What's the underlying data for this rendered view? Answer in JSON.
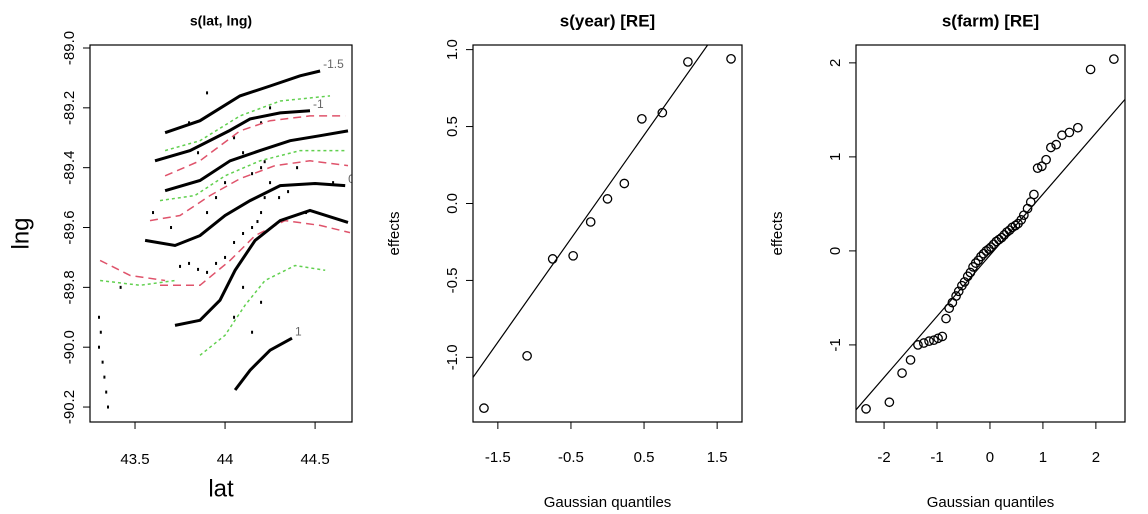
{
  "chart_data": [
    {
      "type": "contour",
      "title": "s(lat, lng)",
      "xlabel": "lat",
      "ylabel": "lng",
      "xlim": [
        43.25,
        44.705
      ],
      "ylim": [
        -90.25,
        -88.99
      ],
      "xticks": [
        43.5,
        44.0,
        44.5
      ],
      "yticks": [
        {
          "value": -89.0,
          "label": "-89.0"
        },
        -89.2,
        -89.4,
        -89.6,
        -89.8,
        {
          "value": -90.0,
          "label": "-90.0"
        },
        -90.2
      ],
      "points": {
        "x": [
          44.2,
          44.18,
          44.15,
          44.22,
          44.25,
          44.1,
          44.05,
          44.0,
          43.95,
          43.9,
          43.85,
          43.8,
          43.75,
          44.2,
          44.22,
          44.15,
          44.3,
          44.35,
          44.1,
          44.05,
          44.0,
          43.95,
          43.9,
          43.85,
          43.8,
          43.9,
          44.2,
          44.25,
          44.1,
          44.05,
          44.15,
          44.2,
          43.3,
          43.31,
          43.3,
          43.32,
          43.33,
          43.34,
          43.35,
          43.42,
          43.6,
          43.7,
          44.4,
          44.45,
          44.6
        ],
        "y": [
          -89.55,
          -89.58,
          -89.6,
          -89.5,
          -89.45,
          -89.62,
          -89.65,
          -89.7,
          -89.72,
          -89.75,
          -89.74,
          -89.72,
          -89.73,
          -89.4,
          -89.38,
          -89.42,
          -89.5,
          -89.48,
          -89.35,
          -89.3,
          -89.45,
          -89.5,
          -89.55,
          -89.35,
          -89.25,
          -89.15,
          -89.25,
          -89.2,
          -89.8,
          -89.9,
          -89.95,
          -89.85,
          -89.9,
          -89.95,
          -90.0,
          -90.05,
          -90.1,
          -90.15,
          -90.2,
          -89.8,
          -89.55,
          -89.6,
          -89.4,
          -89.55,
          -89.45
        ]
      },
      "contours": [
        {
          "level": -1.5,
          "color": "#000000",
          "x": [
            43.667,
            43.861,
            44.083,
            44.25,
            44.417,
            44.528
          ],
          "y": [
            -89.283,
            -89.243,
            -89.16,
            -89.127,
            -89.093,
            -89.077
          ]
        },
        {
          "level": -1,
          "color": "#000000",
          "x": [
            43.611,
            43.806,
            44.022,
            44.139,
            44.306,
            44.472
          ],
          "y": [
            -89.377,
            -89.343,
            -89.277,
            -89.237,
            -89.217,
            -89.21
          ]
        },
        {
          "level": -0.5,
          "color": "#000000",
          "x": [
            43.667,
            43.861,
            44.028,
            44.194,
            44.361,
            44.528,
            44.683
          ],
          "y": [
            -89.477,
            -89.443,
            -89.377,
            -89.343,
            -89.31,
            -89.293,
            -89.277
          ]
        },
        {
          "level": 0,
          "color": "#000000",
          "x": [
            43.556,
            43.722,
            43.861,
            44.0,
            44.139,
            44.306,
            44.5,
            44.667
          ],
          "y": [
            -89.643,
            -89.66,
            -89.627,
            -89.56,
            -89.51,
            -89.46,
            -89.453,
            -89.46
          ]
        },
        {
          "level": 0.5,
          "color": "#000000",
          "x": [
            43.722,
            43.861,
            43.972,
            44.056,
            44.167,
            44.306,
            44.472,
            44.683
          ],
          "y": [
            -89.927,
            -89.91,
            -89.843,
            -89.743,
            -89.643,
            -89.577,
            -89.543,
            -89.583
          ]
        },
        {
          "level": 1,
          "color": "#000000",
          "x": [
            44.056,
            44.139,
            44.25,
            44.372
          ],
          "y": [
            -90.143,
            -90.077,
            -90.01,
            -89.97
          ]
        }
      ],
      "se_contours": [
        {
          "color": "#df536b",
          "x": [
            43.667,
            43.861,
            44.083,
            44.25,
            44.472,
            44.667
          ],
          "y": [
            -89.427,
            -89.377,
            -89.277,
            -89.243,
            -89.227,
            -89.227
          ]
        },
        {
          "color": "#df536b",
          "x": [
            43.583,
            43.75,
            43.917,
            44.083,
            44.278,
            44.472,
            44.683
          ],
          "y": [
            -89.577,
            -89.56,
            -89.493,
            -89.437,
            -89.393,
            -89.377,
            -89.393
          ]
        },
        {
          "color": "#df536b",
          "x": [
            43.639,
            43.861,
            44.028,
            44.167,
            44.333,
            44.528,
            44.694
          ],
          "y": [
            -89.793,
            -89.793,
            -89.71,
            -89.627,
            -89.577,
            -89.593,
            -89.617
          ]
        },
        {
          "color": "#df536b",
          "x": [
            43.306,
            43.472,
            43.667
          ],
          "y": [
            -89.71,
            -89.76,
            -89.777
          ]
        },
        {
          "color": "#61d04f",
          "x": [
            43.667,
            43.861,
            44.083,
            44.306,
            44.583
          ],
          "y": [
            -89.343,
            -89.31,
            -89.227,
            -89.177,
            -89.16
          ]
        },
        {
          "color": "#61d04f",
          "x": [
            43.639,
            43.833,
            44.0,
            44.194,
            44.417,
            44.667
          ],
          "y": [
            -89.51,
            -89.493,
            -89.427,
            -89.377,
            -89.343,
            -89.343
          ]
        },
        {
          "color": "#61d04f",
          "x": [
            43.861,
            44.0,
            44.111,
            44.222,
            44.389,
            44.556
          ],
          "y": [
            -90.027,
            -89.96,
            -89.86,
            -89.777,
            -89.727,
            -89.743
          ]
        },
        {
          "color": "#61d04f",
          "x": [
            43.306,
            43.528,
            43.722
          ],
          "y": [
            -89.777,
            -89.793,
            -89.777
          ]
        }
      ]
    },
    {
      "type": "qq",
      "title": "s(year) [RE]",
      "xlabel": "Gaussian quantiles",
      "ylabel": "effects",
      "xlim": [
        -1.84,
        1.84
      ],
      "ylim": [
        -1.42,
        1.03
      ],
      "xticks": [
        -1.5,
        -0.5,
        0.5,
        1.5
      ],
      "yticks": [
        {
          "value": -1.0,
          "label": "-1.0"
        },
        -0.5,
        {
          "value": 0.0,
          "label": "0.0"
        },
        0.5,
        {
          "value": 1.0,
          "label": "1.0"
        }
      ],
      "x": [
        -1.69,
        -1.1,
        -0.75,
        -0.47,
        -0.23,
        0,
        0.23,
        0.47,
        0.75,
        1.1,
        1.69
      ],
      "values": [
        -1.33,
        -0.99,
        -0.36,
        -0.34,
        -0.12,
        0.03,
        0.13,
        0.55,
        0.59,
        0.92,
        0.94
      ],
      "qq_line": {
        "intercept": 0.108,
        "slope": 0.673
      }
    },
    {
      "type": "qq",
      "title": "s(farm) [RE]",
      "xlabel": "Gaussian quantiles",
      "ylabel": "effects",
      "xlim": [
        -2.53,
        2.55
      ],
      "ylim": [
        -1.82,
        2.19
      ],
      "xticks": [
        -2,
        -1,
        0,
        1,
        2
      ],
      "yticks": [
        -1,
        0,
        1,
        2
      ],
      "x": [
        -2.34,
        -1.9,
        -1.66,
        -1.5,
        -1.36,
        -1.25,
        -1.15,
        -1.06,
        -0.98,
        -0.9,
        -0.83,
        -0.77,
        -0.71,
        -0.64,
        -0.59,
        -0.53,
        -0.48,
        -0.42,
        -0.37,
        -0.32,
        -0.27,
        -0.22,
        -0.17,
        -0.12,
        -0.07,
        -0.02,
        0.02,
        0.07,
        0.12,
        0.17,
        0.22,
        0.27,
        0.32,
        0.37,
        0.42,
        0.48,
        0.53,
        0.59,
        0.64,
        0.71,
        0.77,
        0.83,
        0.9,
        0.98,
        1.06,
        1.15,
        1.25,
        1.36,
        1.5,
        1.66,
        1.9,
        2.34
      ],
      "values": [
        -1.68,
        -1.61,
        -1.3,
        -1.16,
        -1.0,
        -0.98,
        -0.96,
        -0.95,
        -0.93,
        -0.91,
        -0.72,
        -0.61,
        -0.55,
        -0.48,
        -0.43,
        -0.37,
        -0.33,
        -0.27,
        -0.23,
        -0.17,
        -0.13,
        -0.1,
        -0.06,
        -0.03,
        0.0,
        0.02,
        0.04,
        0.07,
        0.1,
        0.12,
        0.14,
        0.17,
        0.2,
        0.22,
        0.25,
        0.27,
        0.29,
        0.33,
        0.38,
        0.45,
        0.52,
        0.6,
        0.88,
        0.9,
        0.97,
        1.1,
        1.13,
        1.23,
        1.26,
        1.31,
        1.93,
        2.04
      ],
      "qq_line": {
        "intercept": -0.046,
        "slope": 0.65
      }
    }
  ]
}
